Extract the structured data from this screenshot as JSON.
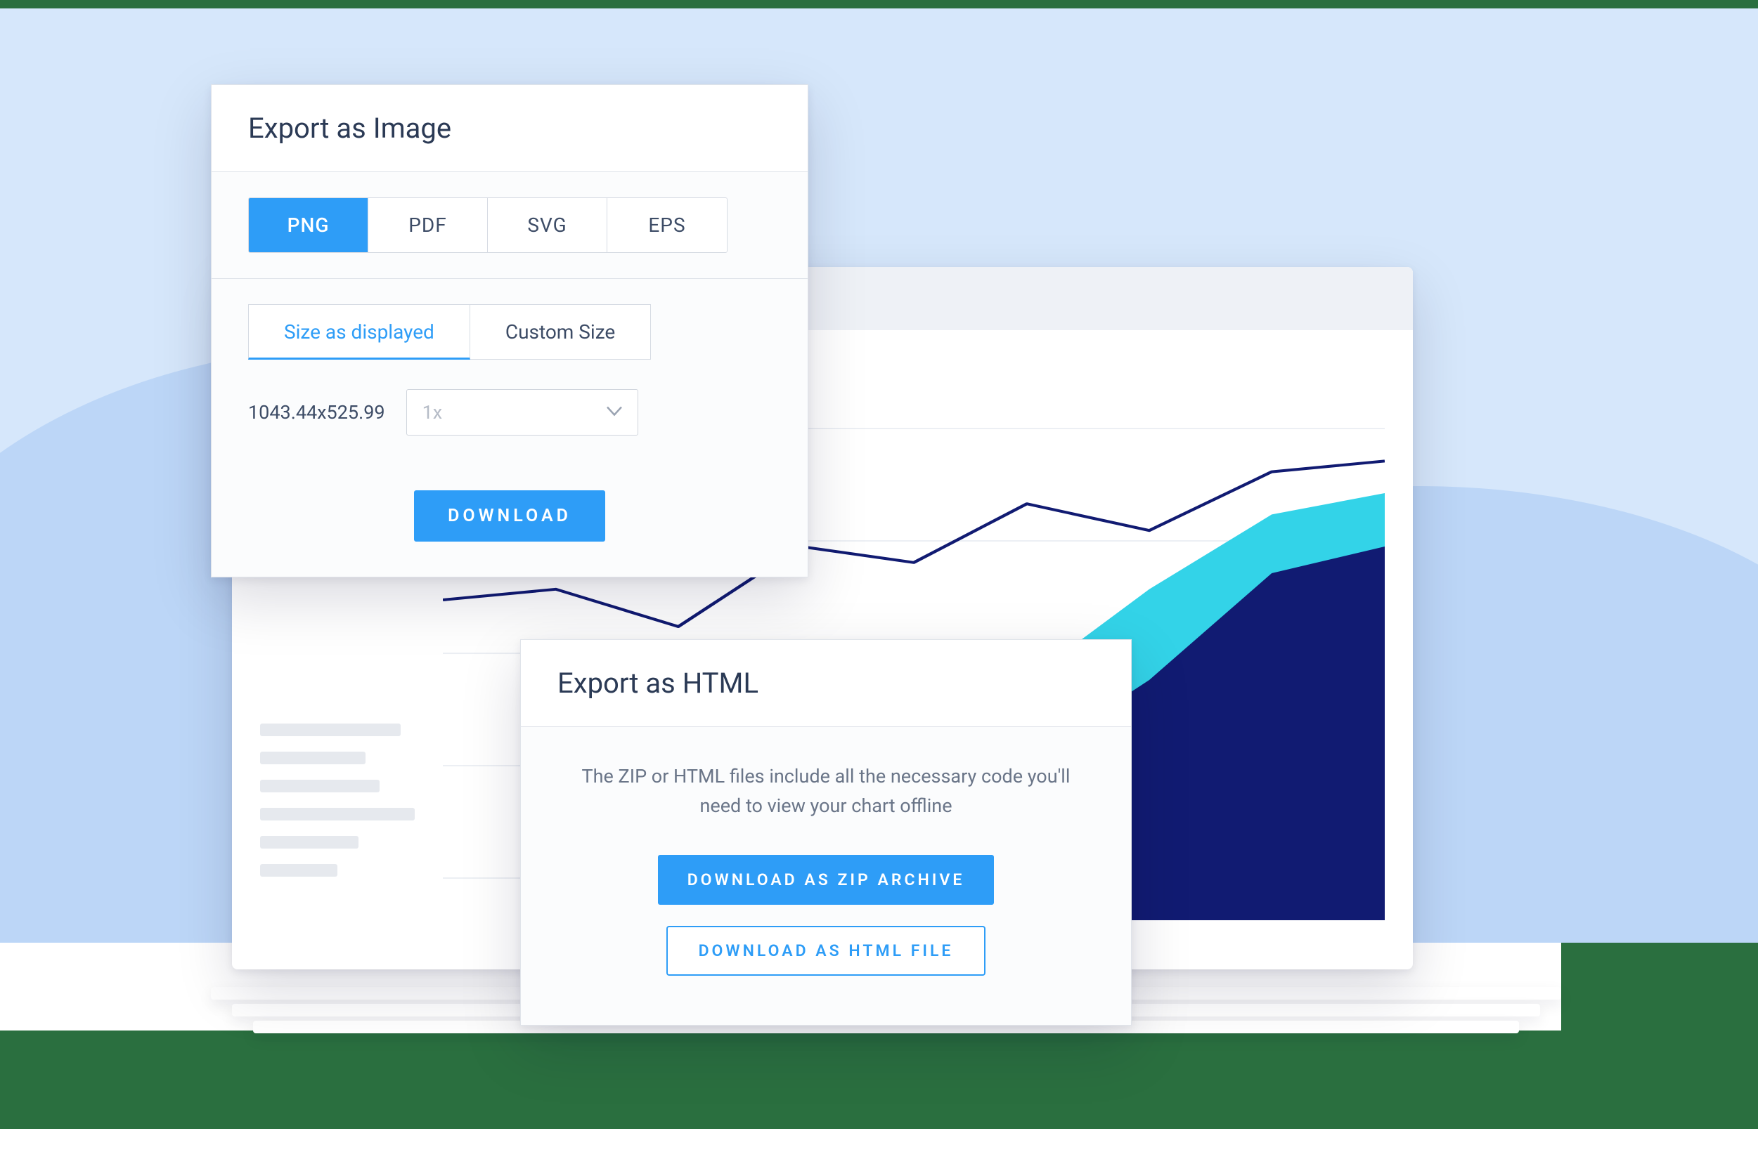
{
  "background": {
    "page_bg": "#ffffff",
    "light_blue": "#d6e7fb",
    "mid_blue": "#bcd6f7",
    "green": "#2a6f3f"
  },
  "chart_window": {
    "titlebar_color": "#eef1f6",
    "chart": {
      "type": "area+line",
      "x_points": [
        0,
        0.12,
        0.25,
        0.38,
        0.5,
        0.62,
        0.75,
        0.88,
        1.0
      ],
      "line_series": {
        "color": "#111b72",
        "stroke_width": 4,
        "y": [
          0.4,
          0.38,
          0.45,
          0.3,
          0.33,
          0.22,
          0.27,
          0.16,
          0.14
        ]
      },
      "area_top": {
        "color": "#33d3e8",
        "y": [
          1.0,
          1.0,
          1.0,
          1.0,
          0.78,
          0.55,
          0.38,
          0.24,
          0.2
        ]
      },
      "area_bottom": {
        "color": "#111b72",
        "y": [
          1.0,
          1.0,
          1.0,
          1.0,
          0.9,
          0.7,
          0.55,
          0.35,
          0.3
        ]
      },
      "grid_color": "#eceff4"
    }
  },
  "export_image": {
    "title": "Export as Image",
    "formats": [
      "PNG",
      "PDF",
      "SVG",
      "EPS"
    ],
    "active_format": "PNG",
    "size_tabs": [
      "Size as displayed",
      "Custom Size"
    ],
    "active_size_tab": "Size as displayed",
    "dimensions": "1043.44x525.99",
    "scale_value": "1x",
    "download_label": "DOWNLOAD",
    "accent_color": "#2e9df7",
    "text_color": "#3d4c66"
  },
  "export_html": {
    "title": "Export as HTML",
    "description": "The ZIP or HTML files include all the necessary code you'll need to view your chart offline",
    "zip_button": "DOWNLOAD AS ZIP ARCHIVE",
    "html_button": "DOWNLOAD AS HTML FILE"
  }
}
